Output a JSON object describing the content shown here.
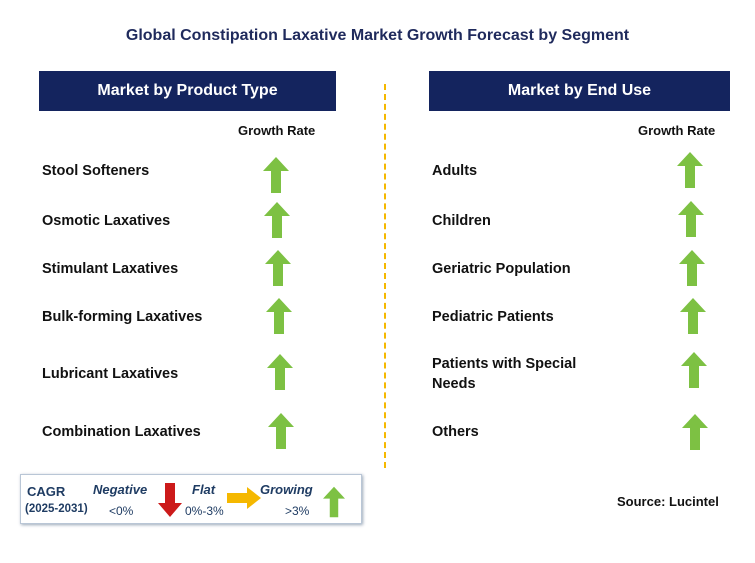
{
  "title": "Global Constipation Laxative Market Growth Forecast by Segment",
  "left_panel": {
    "header": "Market by Product Type",
    "growth_label": "Growth Rate",
    "rows": [
      {
        "label": "Stool Softeners",
        "trend": "growing"
      },
      {
        "label": "Osmotic Laxatives",
        "trend": "growing"
      },
      {
        "label": "Stimulant Laxatives",
        "trend": "growing"
      },
      {
        "label": "Bulk-forming Laxatives",
        "trend": "growing"
      },
      {
        "label": "Lubricant Laxatives",
        "trend": "growing"
      },
      {
        "label": "Combination Laxatives",
        "trend": "growing"
      }
    ]
  },
  "right_panel": {
    "header": "Market by End Use",
    "growth_label": "Growth Rate",
    "rows": [
      {
        "label": "Adults",
        "trend": "growing"
      },
      {
        "label": "Children",
        "trend": "growing"
      },
      {
        "label": "Geriatric Population",
        "trend": "growing"
      },
      {
        "label": "Pediatric Patients",
        "trend": "growing"
      },
      {
        "label": "Patients with Special Needs",
        "trend": "growing"
      },
      {
        "label": "Others",
        "trend": "growing"
      }
    ]
  },
  "legend": {
    "cagr": "CAGR",
    "years": "(2025-2031)",
    "negative": {
      "label": "Negative",
      "range": "<0%",
      "icon": "red-down-arrow-icon"
    },
    "flat": {
      "label": "Flat",
      "range": "0%-3%",
      "icon": "orange-right-arrow-icon"
    },
    "growing": {
      "label": "Growing",
      "range": ">3%",
      "icon": "green-up-arrow-icon"
    }
  },
  "source": "Source: Lucintel",
  "colors": {
    "header_bg": "#14245e",
    "divider": "#f5b800",
    "growing": "#7dc143",
    "negative": "#cc1a1a",
    "flat": "#f5b800"
  }
}
